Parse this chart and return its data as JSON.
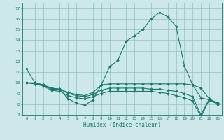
{
  "title": "",
  "xlabel": "Humidex (Indice chaleur)",
  "ylabel": "",
  "background_color": "#cce8e8",
  "line_color": "#1a7a6e",
  "grid_color": "#8bbcbc",
  "xlim": [
    -0.5,
    23.5
  ],
  "ylim": [
    7,
    17.5
  ],
  "yticks": [
    7,
    8,
    9,
    10,
    11,
    12,
    13,
    14,
    15,
    16,
    17
  ],
  "xticks": [
    0,
    1,
    2,
    3,
    4,
    5,
    6,
    7,
    8,
    9,
    10,
    11,
    12,
    13,
    14,
    15,
    16,
    17,
    18,
    19,
    20,
    21,
    22,
    23
  ],
  "series": [
    [
      11.3,
      10.0,
      9.8,
      9.4,
      9.4,
      8.5,
      8.1,
      7.9,
      8.4,
      9.8,
      11.5,
      12.1,
      13.9,
      14.4,
      15.0,
      16.0,
      16.6,
      16.2,
      15.3,
      11.6,
      9.8,
      8.6,
      8.4,
      8.1
    ],
    [
      10.0,
      10.0,
      9.8,
      9.5,
      9.4,
      9.1,
      8.9,
      8.8,
      9.1,
      9.8,
      9.9,
      9.9,
      9.9,
      9.9,
      9.9,
      9.9,
      9.9,
      9.9,
      9.9,
      9.9,
      9.8,
      9.5,
      8.5,
      8.1
    ],
    [
      10.0,
      9.9,
      9.8,
      9.5,
      9.4,
      9.0,
      8.8,
      8.7,
      8.9,
      9.3,
      9.5,
      9.5,
      9.5,
      9.5,
      9.5,
      9.4,
      9.4,
      9.3,
      9.2,
      9.0,
      8.7,
      7.0,
      8.5,
      8.0
    ],
    [
      10.0,
      9.9,
      9.7,
      9.3,
      9.2,
      8.8,
      8.6,
      8.5,
      8.7,
      9.0,
      9.2,
      9.2,
      9.2,
      9.2,
      9.2,
      9.2,
      9.1,
      9.0,
      8.8,
      8.6,
      8.3,
      6.8,
      8.4,
      8.0
    ]
  ]
}
